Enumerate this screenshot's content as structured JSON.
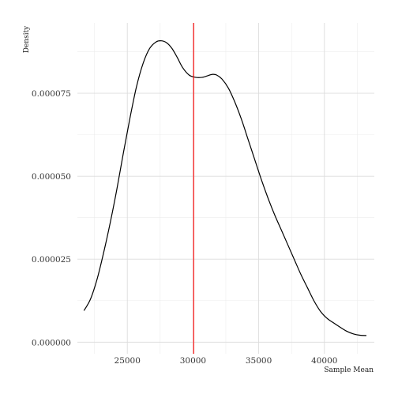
{
  "chart_data": {
    "type": "line",
    "xlabel": "Sample Mean",
    "ylabel": "Density",
    "xlim": [
      21200,
      43800
    ],
    "ylim": [
      -3.5e-06,
      9.62e-05
    ],
    "x_ticks": [
      25000,
      30000,
      35000,
      40000
    ],
    "x_tick_labels": [
      "25000",
      "30000",
      "35000",
      "40000"
    ],
    "y_ticks": [
      0,
      2.5e-05,
      5e-05,
      7.5e-05
    ],
    "y_tick_labels": [
      "0.000000",
      "0.000025",
      "0.000050",
      "0.000075"
    ],
    "grid": true,
    "series": [
      {
        "color": "#000000",
        "x": [
          21700,
          22200,
          22700,
          23200,
          23700,
          24200,
          24700,
          25200,
          25700,
          26200,
          26700,
          27200,
          27600,
          28000,
          28400,
          28800,
          29200,
          29700,
          30200,
          30700,
          31200,
          31500,
          31800,
          32200,
          32700,
          33200,
          33700,
          34200,
          34700,
          35200,
          35700,
          36200,
          36700,
          37200,
          37700,
          38200,
          38700,
          39200,
          39700,
          40200,
          40700,
          41200,
          41700,
          42200,
          42700,
          43200
        ],
        "y": [
          9.5e-06,
          1.3e-05,
          1.9e-05,
          2.7e-05,
          3.6e-05,
          4.6e-05,
          5.7e-05,
          6.75e-05,
          7.7e-05,
          8.4e-05,
          8.85e-05,
          9.05e-05,
          9.08e-05,
          9.02e-05,
          8.85e-05,
          8.58e-05,
          8.28e-05,
          8.05e-05,
          7.98e-05,
          7.98e-05,
          8.04e-05,
          8.07e-05,
          8.05e-05,
          7.93e-05,
          7.65e-05,
          7.22e-05,
          6.7e-05,
          6.1e-05,
          5.5e-05,
          4.9e-05,
          4.35e-05,
          3.85e-05,
          3.4e-05,
          2.95e-05,
          2.5e-05,
          2.05e-05,
          1.65e-05,
          1.25e-05,
          9.3e-06,
          7.2e-06,
          5.8e-06,
          4.5e-06,
          3.3e-06,
          2.5e-06,
          2.1e-06,
          2e-06
        ]
      }
    ],
    "vline": {
      "x": 30050,
      "color": "#ff0000"
    }
  }
}
